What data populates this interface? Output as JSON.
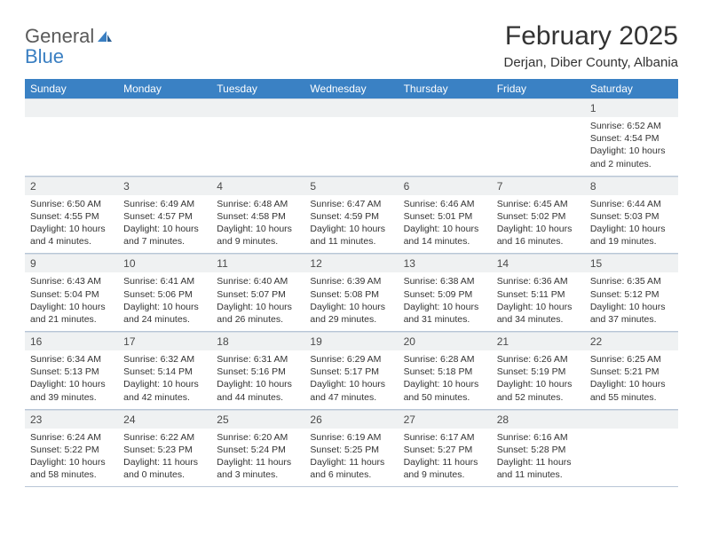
{
  "brand": {
    "name1": "General",
    "name2": "Blue"
  },
  "colors": {
    "header_bg": "#3a81c4",
    "header_text": "#ffffff",
    "daynum_bg": "#eff1f2",
    "grid_line": "#b8c6d6",
    "text": "#333333",
    "logo_gray": "#5a5a5a",
    "logo_blue": "#3a7fc2",
    "page_bg": "#ffffff"
  },
  "typography": {
    "title_fontsize": 30,
    "location_fontsize": 15,
    "dow_fontsize": 12,
    "daynum_fontsize": 12,
    "body_fontsize": 10.5,
    "font_family": "Arial"
  },
  "title": "February 2025",
  "location": "Derjan, Diber County, Albania",
  "dow": [
    "Sunday",
    "Monday",
    "Tuesday",
    "Wednesday",
    "Thursday",
    "Friday",
    "Saturday"
  ],
  "weeks": [
    [
      {
        "n": "",
        "sunrise": "",
        "sunset": "",
        "daylight": ""
      },
      {
        "n": "",
        "sunrise": "",
        "sunset": "",
        "daylight": ""
      },
      {
        "n": "",
        "sunrise": "",
        "sunset": "",
        "daylight": ""
      },
      {
        "n": "",
        "sunrise": "",
        "sunset": "",
        "daylight": ""
      },
      {
        "n": "",
        "sunrise": "",
        "sunset": "",
        "daylight": ""
      },
      {
        "n": "",
        "sunrise": "",
        "sunset": "",
        "daylight": ""
      },
      {
        "n": "1",
        "sunrise": "Sunrise: 6:52 AM",
        "sunset": "Sunset: 4:54 PM",
        "daylight": "Daylight: 10 hours and 2 minutes."
      }
    ],
    [
      {
        "n": "2",
        "sunrise": "Sunrise: 6:50 AM",
        "sunset": "Sunset: 4:55 PM",
        "daylight": "Daylight: 10 hours and 4 minutes."
      },
      {
        "n": "3",
        "sunrise": "Sunrise: 6:49 AM",
        "sunset": "Sunset: 4:57 PM",
        "daylight": "Daylight: 10 hours and 7 minutes."
      },
      {
        "n": "4",
        "sunrise": "Sunrise: 6:48 AM",
        "sunset": "Sunset: 4:58 PM",
        "daylight": "Daylight: 10 hours and 9 minutes."
      },
      {
        "n": "5",
        "sunrise": "Sunrise: 6:47 AM",
        "sunset": "Sunset: 4:59 PM",
        "daylight": "Daylight: 10 hours and 11 minutes."
      },
      {
        "n": "6",
        "sunrise": "Sunrise: 6:46 AM",
        "sunset": "Sunset: 5:01 PM",
        "daylight": "Daylight: 10 hours and 14 minutes."
      },
      {
        "n": "7",
        "sunrise": "Sunrise: 6:45 AM",
        "sunset": "Sunset: 5:02 PM",
        "daylight": "Daylight: 10 hours and 16 minutes."
      },
      {
        "n": "8",
        "sunrise": "Sunrise: 6:44 AM",
        "sunset": "Sunset: 5:03 PM",
        "daylight": "Daylight: 10 hours and 19 minutes."
      }
    ],
    [
      {
        "n": "9",
        "sunrise": "Sunrise: 6:43 AM",
        "sunset": "Sunset: 5:04 PM",
        "daylight": "Daylight: 10 hours and 21 minutes."
      },
      {
        "n": "10",
        "sunrise": "Sunrise: 6:41 AM",
        "sunset": "Sunset: 5:06 PM",
        "daylight": "Daylight: 10 hours and 24 minutes."
      },
      {
        "n": "11",
        "sunrise": "Sunrise: 6:40 AM",
        "sunset": "Sunset: 5:07 PM",
        "daylight": "Daylight: 10 hours and 26 minutes."
      },
      {
        "n": "12",
        "sunrise": "Sunrise: 6:39 AM",
        "sunset": "Sunset: 5:08 PM",
        "daylight": "Daylight: 10 hours and 29 minutes."
      },
      {
        "n": "13",
        "sunrise": "Sunrise: 6:38 AM",
        "sunset": "Sunset: 5:09 PM",
        "daylight": "Daylight: 10 hours and 31 minutes."
      },
      {
        "n": "14",
        "sunrise": "Sunrise: 6:36 AM",
        "sunset": "Sunset: 5:11 PM",
        "daylight": "Daylight: 10 hours and 34 minutes."
      },
      {
        "n": "15",
        "sunrise": "Sunrise: 6:35 AM",
        "sunset": "Sunset: 5:12 PM",
        "daylight": "Daylight: 10 hours and 37 minutes."
      }
    ],
    [
      {
        "n": "16",
        "sunrise": "Sunrise: 6:34 AM",
        "sunset": "Sunset: 5:13 PM",
        "daylight": "Daylight: 10 hours and 39 minutes."
      },
      {
        "n": "17",
        "sunrise": "Sunrise: 6:32 AM",
        "sunset": "Sunset: 5:14 PM",
        "daylight": "Daylight: 10 hours and 42 minutes."
      },
      {
        "n": "18",
        "sunrise": "Sunrise: 6:31 AM",
        "sunset": "Sunset: 5:16 PM",
        "daylight": "Daylight: 10 hours and 44 minutes."
      },
      {
        "n": "19",
        "sunrise": "Sunrise: 6:29 AM",
        "sunset": "Sunset: 5:17 PM",
        "daylight": "Daylight: 10 hours and 47 minutes."
      },
      {
        "n": "20",
        "sunrise": "Sunrise: 6:28 AM",
        "sunset": "Sunset: 5:18 PM",
        "daylight": "Daylight: 10 hours and 50 minutes."
      },
      {
        "n": "21",
        "sunrise": "Sunrise: 6:26 AM",
        "sunset": "Sunset: 5:19 PM",
        "daylight": "Daylight: 10 hours and 52 minutes."
      },
      {
        "n": "22",
        "sunrise": "Sunrise: 6:25 AM",
        "sunset": "Sunset: 5:21 PM",
        "daylight": "Daylight: 10 hours and 55 minutes."
      }
    ],
    [
      {
        "n": "23",
        "sunrise": "Sunrise: 6:24 AM",
        "sunset": "Sunset: 5:22 PM",
        "daylight": "Daylight: 10 hours and 58 minutes."
      },
      {
        "n": "24",
        "sunrise": "Sunrise: 6:22 AM",
        "sunset": "Sunset: 5:23 PM",
        "daylight": "Daylight: 11 hours and 0 minutes."
      },
      {
        "n": "25",
        "sunrise": "Sunrise: 6:20 AM",
        "sunset": "Sunset: 5:24 PM",
        "daylight": "Daylight: 11 hours and 3 minutes."
      },
      {
        "n": "26",
        "sunrise": "Sunrise: 6:19 AM",
        "sunset": "Sunset: 5:25 PM",
        "daylight": "Daylight: 11 hours and 6 minutes."
      },
      {
        "n": "27",
        "sunrise": "Sunrise: 6:17 AM",
        "sunset": "Sunset: 5:27 PM",
        "daylight": "Daylight: 11 hours and 9 minutes."
      },
      {
        "n": "28",
        "sunrise": "Sunrise: 6:16 AM",
        "sunset": "Sunset: 5:28 PM",
        "daylight": "Daylight: 11 hours and 11 minutes."
      },
      {
        "n": "",
        "sunrise": "",
        "sunset": "",
        "daylight": ""
      }
    ]
  ]
}
